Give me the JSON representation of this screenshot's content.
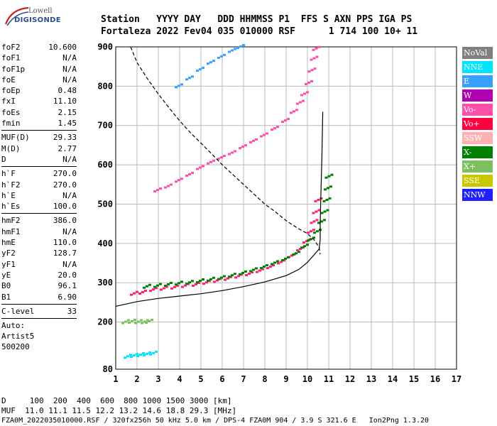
{
  "logo": {
    "line1": "Lowell",
    "line2": "DIGISONDE"
  },
  "header": {
    "line1": "Station   YYYY DAY   DDD HHMMSS P1  FFS S AXN PPS IGA PS",
    "line2": "Fortaleza 2022 Fev04 035 010000 RSF      1 714 100 10+ 11"
  },
  "params": {
    "group1": [
      {
        "k": "foF2",
        "v": "10.600"
      },
      {
        "k": "foF1",
        "v": "N/A"
      },
      {
        "k": "foF1p",
        "v": "N/A"
      },
      {
        "k": "foE",
        "v": "N/A"
      },
      {
        "k": "foEp",
        "v": "0.48"
      },
      {
        "k": "fxI",
        "v": "11.10"
      },
      {
        "k": "foEs",
        "v": "2.15"
      },
      {
        "k": "fmin",
        "v": "1.45"
      }
    ],
    "group2": [
      {
        "k": "MUF(D)",
        "v": "29.33"
      },
      {
        "k": "M(D)",
        "v": "2.77"
      },
      {
        "k": "D",
        "v": "N/A"
      }
    ],
    "group3": [
      {
        "k": "h`F",
        "v": "270.0"
      },
      {
        "k": "h`F2",
        "v": "270.0"
      },
      {
        "k": "h`E",
        "v": "N/A"
      },
      {
        "k": "h`Es",
        "v": "100.0"
      }
    ],
    "group4": [
      {
        "k": "hmF2",
        "v": "386.0"
      },
      {
        "k": "hmF1",
        "v": "N/A"
      },
      {
        "k": "hmE",
        "v": "110.0"
      },
      {
        "k": "yF2",
        "v": "128.7"
      },
      {
        "k": "yF1",
        "v": "N/A"
      },
      {
        "k": "yE",
        "v": "20.0"
      },
      {
        "k": "B0",
        "v": "96.1"
      },
      {
        "k": "B1",
        "v": "6.90"
      }
    ],
    "group5": [
      {
        "k": "C-level",
        "v": "33"
      }
    ],
    "auto": [
      "Auto:",
      "Artist5",
      "500200"
    ]
  },
  "legend": [
    {
      "label": "NoVal",
      "color": "#808080"
    },
    {
      "label": "NNE",
      "color": "#00e5ff"
    },
    {
      "label": "E",
      "color": "#3aa0ff"
    },
    {
      "label": "W",
      "color": "#b000b0"
    },
    {
      "label": "Vo-",
      "color": "#ff4fa8"
    },
    {
      "label": "Vo+",
      "color": "#ff0040"
    },
    {
      "label": "SSW",
      "color": "#ffb0b0"
    },
    {
      "label": "X-",
      "color": "#008000"
    },
    {
      "label": "X+",
      "color": "#7cc060"
    },
    {
      "label": "SSE",
      "color": "#c8c800"
    },
    {
      "label": "NNW",
      "color": "#2020ff"
    }
  ],
  "footer": {
    "line1": "D     100  200  400  600  800 1000 1500 3000 [km]",
    "line2": "MUF  11.0 11.1 11.5 12.2 13.2 14.6 18.8 29.3 [MHz]",
    "line3": "FZA0M_2022035010000.RSF / 320fx256h 50 kHz 5.0 km / DPS-4 FZA0M 904 / 3.9 S 321.6 E   Ion2Png 1.3.20"
  },
  "chart_data": {
    "type": "scatter",
    "title": "",
    "xlabel": "",
    "ylabel": "",
    "xlim": [
      1,
      17
    ],
    "ylim": [
      80,
      900
    ],
    "x_ticks": [
      1,
      2,
      3,
      4,
      5,
      6,
      7,
      8,
      9,
      10,
      11,
      12,
      13,
      14,
      15,
      16,
      17
    ],
    "y_ticks": [
      80,
      200,
      300,
      400,
      500,
      600,
      700,
      800,
      900
    ],
    "grid": true,
    "series": [
      {
        "name": "O trace",
        "style": "points",
        "color": "#ff2070",
        "points": [
          [
            1.9,
            272
          ],
          [
            2.3,
            275
          ],
          [
            2.8,
            282
          ],
          [
            3.3,
            285
          ],
          [
            3.8,
            288
          ],
          [
            4.3,
            292
          ],
          [
            4.8,
            295
          ],
          [
            5.3,
            300
          ],
          [
            5.8,
            305
          ],
          [
            6.3,
            310
          ],
          [
            6.8,
            316
          ],
          [
            7.3,
            322
          ],
          [
            7.8,
            330
          ],
          [
            8.3,
            340
          ],
          [
            8.8,
            352
          ],
          [
            9.3,
            368
          ],
          [
            9.7,
            385
          ],
          [
            10.0,
            405
          ],
          [
            10.2,
            430
          ],
          [
            10.35,
            455
          ],
          [
            10.45,
            480
          ],
          [
            10.55,
            510
          ]
        ]
      },
      {
        "name": "X trace",
        "style": "points",
        "color": "#008000",
        "points": [
          [
            2.5,
            290
          ],
          [
            3.0,
            292
          ],
          [
            3.5,
            295
          ],
          [
            4.0,
            298
          ],
          [
            4.5,
            300
          ],
          [
            5.0,
            304
          ],
          [
            5.5,
            308
          ],
          [
            6.0,
            312
          ],
          [
            6.5,
            318
          ],
          [
            7.0,
            324
          ],
          [
            7.5,
            332
          ],
          [
            8.0,
            340
          ],
          [
            8.5,
            350
          ],
          [
            9.0,
            360
          ],
          [
            9.5,
            374
          ],
          [
            9.9,
            392
          ],
          [
            10.2,
            410
          ],
          [
            10.5,
            430
          ],
          [
            10.7,
            455
          ],
          [
            10.85,
            480
          ],
          [
            10.95,
            510
          ],
          [
            11.0,
            540
          ],
          [
            11.05,
            570
          ]
        ]
      },
      {
        "name": "2nd hop",
        "style": "points",
        "color": "#ff4fa8",
        "points": [
          [
            3.0,
            535
          ],
          [
            3.5,
            545
          ],
          [
            4.0,
            560
          ],
          [
            4.5,
            575
          ],
          [
            5.0,
            592
          ],
          [
            5.5,
            606
          ],
          [
            6.0,
            618
          ],
          [
            6.5,
            630
          ],
          [
            7.0,
            645
          ],
          [
            7.5,
            660
          ],
          [
            8.0,
            675
          ],
          [
            8.5,
            692
          ],
          [
            9.0,
            712
          ],
          [
            9.4,
            735
          ],
          [
            9.7,
            758
          ],
          [
            9.9,
            780
          ],
          [
            10.1,
            808
          ],
          [
            10.25,
            840
          ],
          [
            10.35,
            870
          ],
          [
            10.45,
            895
          ]
        ]
      },
      {
        "name": "3rd hop",
        "style": "points",
        "color": "#3aa0ff",
        "points": [
          [
            4.0,
            800
          ],
          [
            4.5,
            820
          ],
          [
            5.0,
            842
          ],
          [
            5.5,
            860
          ],
          [
            6.0,
            875
          ],
          [
            6.5,
            890
          ],
          [
            6.9,
            900
          ]
        ]
      },
      {
        "name": "Es",
        "style": "points",
        "color": "#00e5ff",
        "points": [
          [
            1.6,
            112
          ],
          [
            1.9,
            114
          ],
          [
            2.2,
            116
          ],
          [
            2.5,
            118
          ],
          [
            2.8,
            120
          ]
        ]
      },
      {
        "name": "Es 2",
        "style": "points",
        "color": "#7cc060",
        "points": [
          [
            1.5,
            200
          ],
          [
            1.8,
            201
          ],
          [
            2.1,
            200
          ],
          [
            2.4,
            200
          ],
          [
            2.6,
            201
          ]
        ]
      },
      {
        "name": "N(h) profile",
        "style": "solid",
        "color": "#000000",
        "points": [
          [
            1.0,
            240
          ],
          [
            2.0,
            252
          ],
          [
            3.0,
            260
          ],
          [
            4.0,
            266
          ],
          [
            5.0,
            272
          ],
          [
            6.0,
            280
          ],
          [
            7.0,
            290
          ],
          [
            8.0,
            302
          ],
          [
            9.0,
            318
          ],
          [
            9.6,
            334
          ],
          [
            10.0,
            352
          ],
          [
            10.3,
            370
          ],
          [
            10.55,
            386
          ],
          [
            10.6,
            410
          ],
          [
            10.6,
            450
          ],
          [
            10.62,
            500
          ],
          [
            10.65,
            560
          ],
          [
            10.68,
            620
          ],
          [
            10.7,
            680
          ],
          [
            10.72,
            735
          ]
        ]
      },
      {
        "name": "Virtual height model",
        "style": "dashed",
        "color": "#000000",
        "points": [
          [
            1.7,
            900
          ],
          [
            2.0,
            860
          ],
          [
            2.5,
            818
          ],
          [
            3.0,
            780
          ],
          [
            3.5,
            745
          ],
          [
            4.0,
            712
          ],
          [
            4.5,
            682
          ],
          [
            5.0,
            655
          ],
          [
            5.5,
            628
          ],
          [
            6.0,
            600
          ],
          [
            6.5,
            575
          ],
          [
            7.0,
            550
          ],
          [
            7.5,
            525
          ],
          [
            8.0,
            500
          ],
          [
            8.5,
            480
          ],
          [
            9.0,
            458
          ],
          [
            9.5,
            440
          ],
          [
            10.0,
            425
          ],
          [
            10.3,
            410
          ],
          [
            10.55,
            390
          ],
          [
            10.6,
            372
          ]
        ]
      }
    ]
  }
}
